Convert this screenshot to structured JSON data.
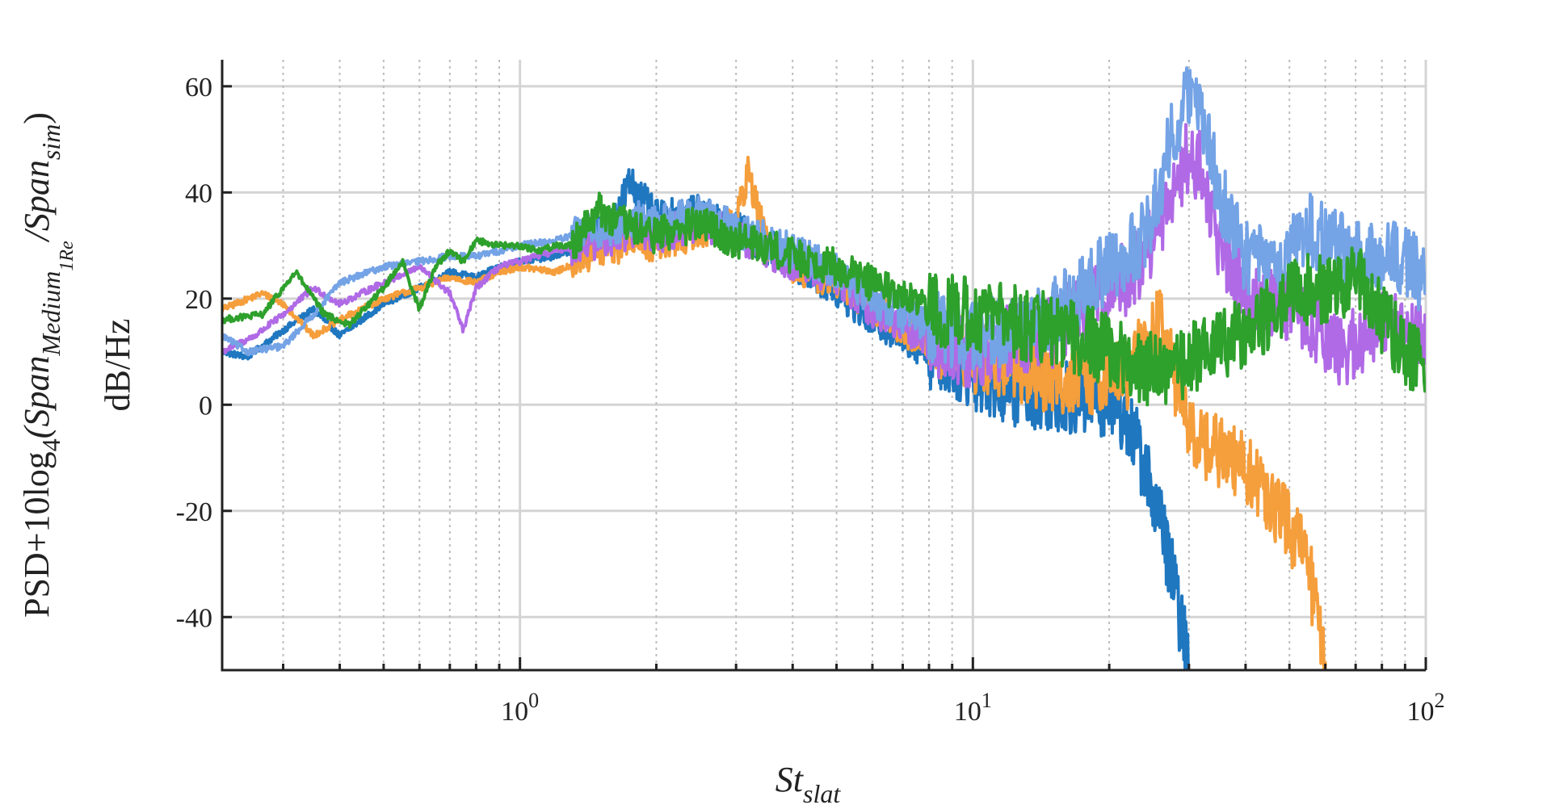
{
  "chart_data": {
    "type": "line",
    "title": "",
    "x_scale": "log",
    "xlim": [
      0.22,
      100
    ],
    "ylim": [
      -50,
      65
    ],
    "grid": true,
    "xlabel": {
      "main": "St",
      "sub": "slat"
    },
    "ylabel": {
      "line1": [
        {
          "t": "PSD+10log",
          "s": "n"
        },
        {
          "t": "4",
          "s": "sub"
        },
        {
          "t": "(Span",
          "s": "n"
        },
        {
          "t": "Medium",
          "s": "sub"
        },
        {
          "t": "1Re",
          "s": "subsub"
        },
        {
          "t": "/Span",
          "s": "n"
        },
        {
          "t": "sim",
          "s": "sub"
        },
        {
          "t": ")",
          "s": "n"
        }
      ],
      "line2": "dB/Hz"
    },
    "y_ticks": [
      "-40",
      "-20",
      "0",
      "20",
      "40",
      "60"
    ],
    "x_ticks": [
      {
        "base": "10",
        "exp": "0",
        "value": 1
      },
      {
        "base": "10",
        "exp": "1",
        "value": 10
      },
      {
        "base": "10",
        "exp": "2",
        "value": 100
      }
    ],
    "series": [
      {
        "color": "#1f77c0",
        "points": [
          [
            0.22,
            10
          ],
          [
            0.25,
            9
          ],
          [
            0.3,
            14
          ],
          [
            0.35,
            18
          ],
          [
            0.4,
            13
          ],
          [
            0.5,
            19
          ],
          [
            0.6,
            22
          ],
          [
            0.7,
            25
          ],
          [
            0.8,
            24
          ],
          [
            0.9,
            26
          ],
          [
            1.0,
            27
          ],
          [
            1.2,
            28
          ],
          [
            1.4,
            30
          ],
          [
            1.6,
            34
          ],
          [
            1.75,
            42
          ],
          [
            2.0,
            35
          ],
          [
            2.5,
            36
          ],
          [
            3.0,
            33
          ],
          [
            3.5,
            30
          ],
          [
            4.0,
            27
          ],
          [
            5.0,
            22
          ],
          [
            6.0,
            16
          ],
          [
            7.0,
            13
          ],
          [
            8.0,
            10
          ],
          [
            9.0,
            8
          ],
          [
            10,
            6
          ],
          [
            12,
            3
          ],
          [
            15,
            2
          ],
          [
            18,
            1
          ],
          [
            20,
            1
          ],
          [
            22,
            -3
          ],
          [
            24,
            -12
          ],
          [
            26,
            -22
          ],
          [
            28,
            -35
          ],
          [
            30,
            -50
          ]
        ]
      },
      {
        "color": "#f59e3c",
        "points": [
          [
            0.22,
            18
          ],
          [
            0.27,
            21
          ],
          [
            0.3,
            19
          ],
          [
            0.35,
            13
          ],
          [
            0.4,
            16
          ],
          [
            0.5,
            20
          ],
          [
            0.6,
            22
          ],
          [
            0.7,
            24
          ],
          [
            0.8,
            23
          ],
          [
            0.9,
            25
          ],
          [
            1.0,
            26
          ],
          [
            1.2,
            25
          ],
          [
            1.5,
            29
          ],
          [
            1.8,
            31
          ],
          [
            2.0,
            30
          ],
          [
            2.5,
            33
          ],
          [
            3.0,
            34
          ],
          [
            3.2,
            44
          ],
          [
            3.5,
            30
          ],
          [
            4.0,
            26
          ],
          [
            5.0,
            23
          ],
          [
            6.0,
            19
          ],
          [
            7.0,
            14
          ],
          [
            8.0,
            12
          ],
          [
            10,
            9
          ],
          [
            12,
            8
          ],
          [
            15,
            5
          ],
          [
            18,
            5
          ],
          [
            20,
            6
          ],
          [
            22,
            6
          ],
          [
            24,
            12
          ],
          [
            26,
            15
          ],
          [
            27,
            10
          ],
          [
            30,
            -5
          ],
          [
            35,
            -9
          ],
          [
            40,
            -12
          ],
          [
            45,
            -18
          ],
          [
            50,
            -23
          ],
          [
            55,
            -30
          ],
          [
            60,
            -50
          ]
        ]
      },
      {
        "color": "#b06ae6",
        "points": [
          [
            0.22,
            10
          ],
          [
            0.26,
            13
          ],
          [
            0.3,
            17
          ],
          [
            0.35,
            22
          ],
          [
            0.4,
            19
          ],
          [
            0.5,
            23
          ],
          [
            0.6,
            26
          ],
          [
            0.7,
            21
          ],
          [
            0.75,
            14
          ],
          [
            0.8,
            22
          ],
          [
            0.9,
            26
          ],
          [
            1.0,
            27
          ],
          [
            1.2,
            29
          ],
          [
            1.5,
            31
          ],
          [
            1.8,
            33
          ],
          [
            2.0,
            32
          ],
          [
            2.5,
            34
          ],
          [
            3.0,
            32
          ],
          [
            3.5,
            29
          ],
          [
            4.0,
            27
          ],
          [
            5.0,
            24
          ],
          [
            6.0,
            18
          ],
          [
            7.0,
            15
          ],
          [
            8.0,
            12
          ],
          [
            10,
            10
          ],
          [
            12,
            12
          ],
          [
            15,
            14
          ],
          [
            18,
            19
          ],
          [
            20,
            22
          ],
          [
            22,
            24
          ],
          [
            24,
            28
          ],
          [
            26,
            35
          ],
          [
            28,
            42
          ],
          [
            30,
            47
          ],
          [
            32,
            44
          ],
          [
            35,
            30
          ],
          [
            40,
            22
          ],
          [
            45,
            20
          ],
          [
            50,
            18
          ],
          [
            55,
            16
          ],
          [
            60,
            13
          ],
          [
            65,
            9
          ],
          [
            70,
            12
          ],
          [
            80,
            16
          ],
          [
            90,
            13
          ],
          [
            100,
            14
          ]
        ]
      },
      {
        "color": "#74a3e6",
        "points": [
          [
            0.22,
            13
          ],
          [
            0.25,
            10
          ],
          [
            0.3,
            11
          ],
          [
            0.35,
            17
          ],
          [
            0.4,
            23
          ],
          [
            0.5,
            26
          ],
          [
            0.6,
            27
          ],
          [
            0.7,
            28
          ],
          [
            0.8,
            28
          ],
          [
            0.9,
            29
          ],
          [
            1.0,
            30
          ],
          [
            1.2,
            31
          ],
          [
            1.5,
            33
          ],
          [
            1.8,
            35
          ],
          [
            2.0,
            34
          ],
          [
            2.5,
            36
          ],
          [
            3.0,
            33
          ],
          [
            3.5,
            31
          ],
          [
            4.0,
            29
          ],
          [
            5.0,
            25
          ],
          [
            6.0,
            20
          ],
          [
            7.0,
            17
          ],
          [
            8.0,
            15
          ],
          [
            10,
            13
          ],
          [
            12,
            14
          ],
          [
            15,
            17
          ],
          [
            18,
            22
          ],
          [
            20,
            27
          ],
          [
            22,
            28
          ],
          [
            24,
            32
          ],
          [
            26,
            42
          ],
          [
            28,
            53
          ],
          [
            30,
            58
          ],
          [
            32,
            55
          ],
          [
            35,
            40
          ],
          [
            40,
            28
          ],
          [
            45,
            26
          ],
          [
            50,
            28
          ],
          [
            55,
            33
          ],
          [
            60,
            31
          ],
          [
            70,
            28
          ],
          [
            80,
            27
          ],
          [
            90,
            28
          ],
          [
            100,
            22
          ]
        ]
      },
      {
        "color": "#2ea02c",
        "points": [
          [
            0.22,
            16
          ],
          [
            0.27,
            17
          ],
          [
            0.32,
            25
          ],
          [
            0.37,
            17
          ],
          [
            0.42,
            15
          ],
          [
            0.5,
            22
          ],
          [
            0.55,
            27
          ],
          [
            0.6,
            18
          ],
          [
            0.65,
            26
          ],
          [
            0.7,
            29
          ],
          [
            0.75,
            27
          ],
          [
            0.8,
            31
          ],
          [
            0.9,
            30
          ],
          [
            1.0,
            30
          ],
          [
            1.1,
            29
          ],
          [
            1.2,
            30
          ],
          [
            1.3,
            30
          ],
          [
            1.4,
            34
          ],
          [
            1.5,
            37
          ],
          [
            1.6,
            35
          ],
          [
            1.8,
            33
          ],
          [
            2.0,
            32
          ],
          [
            2.5,
            34
          ],
          [
            3.0,
            31
          ],
          [
            3.5,
            30
          ],
          [
            4.0,
            28
          ],
          [
            5.0,
            26
          ],
          [
            6.0,
            23
          ],
          [
            7.0,
            20
          ],
          [
            8.0,
            18
          ],
          [
            10,
            17
          ],
          [
            12,
            16
          ],
          [
            15,
            14
          ],
          [
            18,
            12
          ],
          [
            20,
            10
          ],
          [
            22,
            8
          ],
          [
            24,
            7
          ],
          [
            26,
            6
          ],
          [
            28,
            7
          ],
          [
            30,
            9
          ],
          [
            32,
            10
          ],
          [
            35,
            11
          ],
          [
            40,
            14
          ],
          [
            45,
            17
          ],
          [
            50,
            20
          ],
          [
            55,
            22
          ],
          [
            60,
            21
          ],
          [
            65,
            22
          ],
          [
            70,
            25
          ],
          [
            75,
            20
          ],
          [
            80,
            16
          ],
          [
            90,
            10
          ],
          [
            100,
            8
          ]
        ]
      }
    ]
  }
}
